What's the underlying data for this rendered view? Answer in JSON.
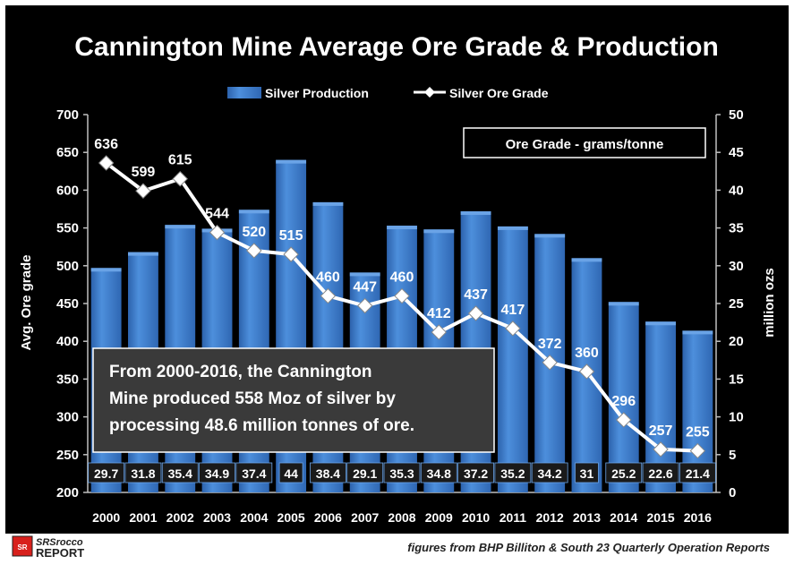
{
  "colors": {
    "background": "#000000",
    "bar": "#3a78c8",
    "bar_highlight": "#6aa3e6",
    "line": "#ffffff",
    "text": "#ffffff",
    "footer_text": "#222222",
    "logo_red": "#d8201c"
  },
  "chart_data": {
    "type": "bar",
    "title": "Cannington Mine Average Ore Grade & Production",
    "categories": [
      "2000",
      "2001",
      "2002",
      "2003",
      "2004",
      "2005",
      "2006",
      "2007",
      "2008",
      "2009",
      "2010",
      "2011",
      "2012",
      "2013",
      "2014",
      "2015",
      "2016"
    ],
    "series": [
      {
        "name": "Silver Production",
        "type": "bar",
        "axis": "right",
        "values": [
          29.7,
          31.8,
          35.4,
          34.9,
          37.4,
          44,
          38.4,
          29.1,
          35.3,
          34.8,
          37.2,
          35.2,
          34.2,
          31,
          25.2,
          22.6,
          21.4
        ],
        "labels": [
          "29.7",
          "31.8",
          "35.4",
          "34.9",
          "37.4",
          "44",
          "38.4",
          "29.1",
          "35.3",
          "34.8",
          "37.2",
          "35.2",
          "34.2",
          "31",
          "25.2",
          "22.6",
          "21.4"
        ]
      },
      {
        "name": "Silver Ore Grade",
        "type": "line",
        "axis": "left",
        "values": [
          636,
          599,
          615,
          544,
          520,
          515,
          460,
          447,
          460,
          412,
          437,
          417,
          372,
          360,
          296,
          257,
          255
        ],
        "labels": [
          "636",
          "599",
          "615",
          "544",
          "520",
          "515",
          "460",
          "447",
          "460",
          "412",
          "437",
          "417",
          "372",
          "360",
          "296",
          "257",
          "255"
        ]
      }
    ],
    "ylabel": "Avg. Ore grade",
    "ylabel_right": "million ozs",
    "ylim": [
      200,
      700
    ],
    "ylim_right": [
      0,
      50
    ],
    "yticks": [
      "200",
      "250",
      "300",
      "350",
      "400",
      "450",
      "500",
      "550",
      "600",
      "650",
      "700"
    ],
    "yticks_right": [
      "0",
      "5",
      "10",
      "15",
      "20",
      "25",
      "30",
      "35",
      "40",
      "45",
      "50"
    ],
    "legend_position": "top-center",
    "grid": false,
    "annotations": {
      "unit_box": "Ore Grade - grams/tonne",
      "summary_line1": "From 2000-2016, the Cannington",
      "summary_line2": "Mine produced 558 Moz of silver by",
      "summary_line3": "processing 48.6 million tonnes of ore."
    }
  },
  "footer": {
    "logo_line1": "SRSrocco",
    "logo_line2": "REPORT",
    "logo_badge": "SR",
    "source": "figures from BHP Billiton & South 23 Quarterly Operation Reports"
  }
}
